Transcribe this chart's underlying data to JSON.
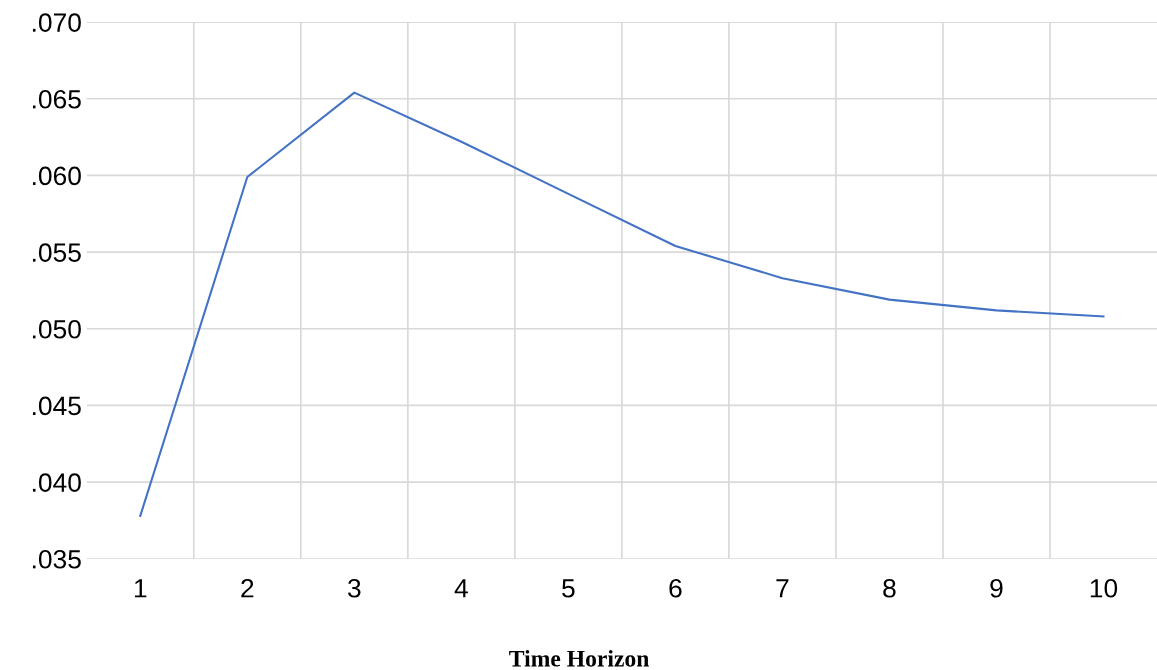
{
  "chart_data": {
    "type": "line",
    "xlabel": "Time Horizon",
    "categories": [
      "1",
      "2",
      "3",
      "4",
      "5",
      "6",
      "7",
      "8",
      "9",
      "10"
    ],
    "series": [
      {
        "color": "#4472c4",
        "values": [
          0.0378,
          0.0599,
          0.0654,
          0.0622,
          0.0588,
          0.0554,
          0.0533,
          0.0519,
          0.0512,
          0.0508
        ]
      }
    ],
    "ylim": [
      0.035,
      0.07
    ],
    "yticks": [
      {
        "value": 0.035,
        "label": ".035"
      },
      {
        "value": 0.04,
        "label": ".040"
      },
      {
        "value": 0.045,
        "label": ".045"
      },
      {
        "value": 0.05,
        "label": ".050"
      },
      {
        "value": 0.055,
        "label": ".055"
      },
      {
        "value": 0.06,
        "label": ".060"
      },
      {
        "value": 0.065,
        "label": ".065"
      },
      {
        "value": 0.07,
        "label": ".070"
      }
    ],
    "grid": true,
    "marker": "none",
    "line_style": "solid",
    "legend": false
  }
}
